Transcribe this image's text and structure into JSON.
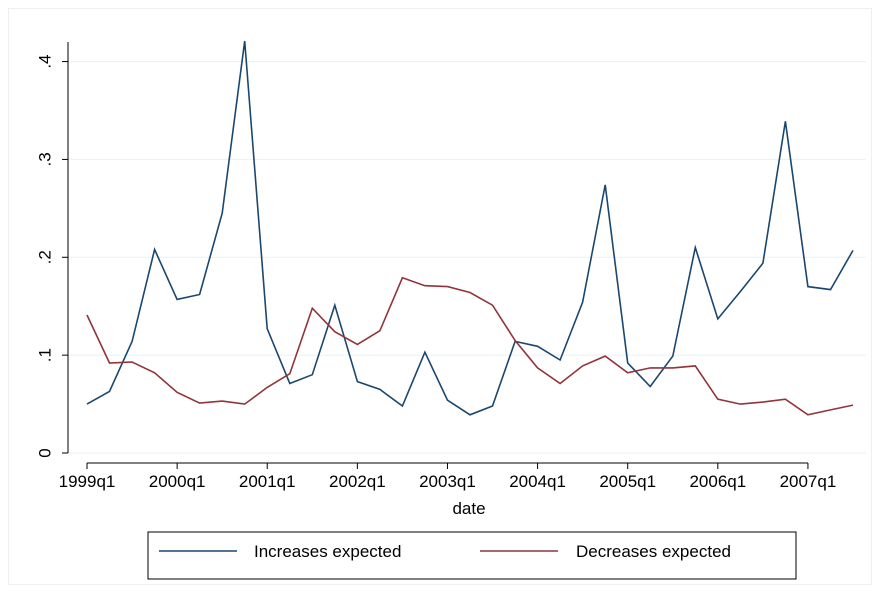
{
  "chart_data": {
    "type": "line",
    "xlabel": "date",
    "ylabel": "",
    "ylim": [
      0,
      0.42
    ],
    "yticks": [
      0,
      0.1,
      0.2,
      0.3,
      0.4
    ],
    "ytick_labels": [
      "0",
      ".1",
      ".2",
      ".3",
      ".4"
    ],
    "xticks": [
      "1999q1",
      "2000q1",
      "2001q1",
      "2002q1",
      "2003q1",
      "2004q1",
      "2005q1",
      "2006q1",
      "2007q1"
    ],
    "x": [
      "1999q1",
      "1999q2",
      "1999q3",
      "1999q4",
      "2000q1",
      "2000q2",
      "2000q3",
      "2000q4",
      "2001q1",
      "2001q2",
      "2001q3",
      "2001q4",
      "2002q1",
      "2002q2",
      "2002q3",
      "2002q4",
      "2003q1",
      "2003q2",
      "2003q3",
      "2003q4",
      "2004q1",
      "2004q2",
      "2004q3",
      "2004q4",
      "2005q1",
      "2005q2",
      "2005q3",
      "2005q4",
      "2006q1",
      "2006q2",
      "2006q3",
      "2006q4",
      "2007q1",
      "2007q2",
      "2007q3"
    ],
    "grid": true,
    "legend_position": "bottom",
    "series": [
      {
        "name": "Increases expected",
        "color": "#1a476f",
        "values": [
          0.05,
          0.063,
          0.114,
          0.208,
          0.157,
          0.162,
          0.245,
          0.421,
          0.127,
          0.071,
          0.08,
          0.151,
          0.073,
          0.065,
          0.048,
          0.103,
          0.054,
          0.039,
          0.048,
          0.114,
          0.109,
          0.095,
          0.154,
          0.274,
          0.092,
          0.068,
          0.099,
          0.21,
          0.137,
          0.165,
          0.194,
          0.339,
          0.17,
          0.167,
          0.207
        ]
      },
      {
        "name": "Decreases expected",
        "color": "#90353b",
        "values": [
          0.141,
          0.092,
          0.093,
          0.082,
          0.062,
          0.051,
          0.053,
          0.05,
          0.067,
          0.081,
          0.148,
          0.124,
          0.111,
          0.125,
          0.179,
          0.171,
          0.17,
          0.164,
          0.151,
          0.115,
          0.087,
          0.071,
          0.089,
          0.099,
          0.082,
          0.087,
          0.087,
          0.089,
          0.055,
          0.05,
          0.052,
          0.055,
          0.039,
          0.044,
          0.049
        ]
      }
    ]
  }
}
